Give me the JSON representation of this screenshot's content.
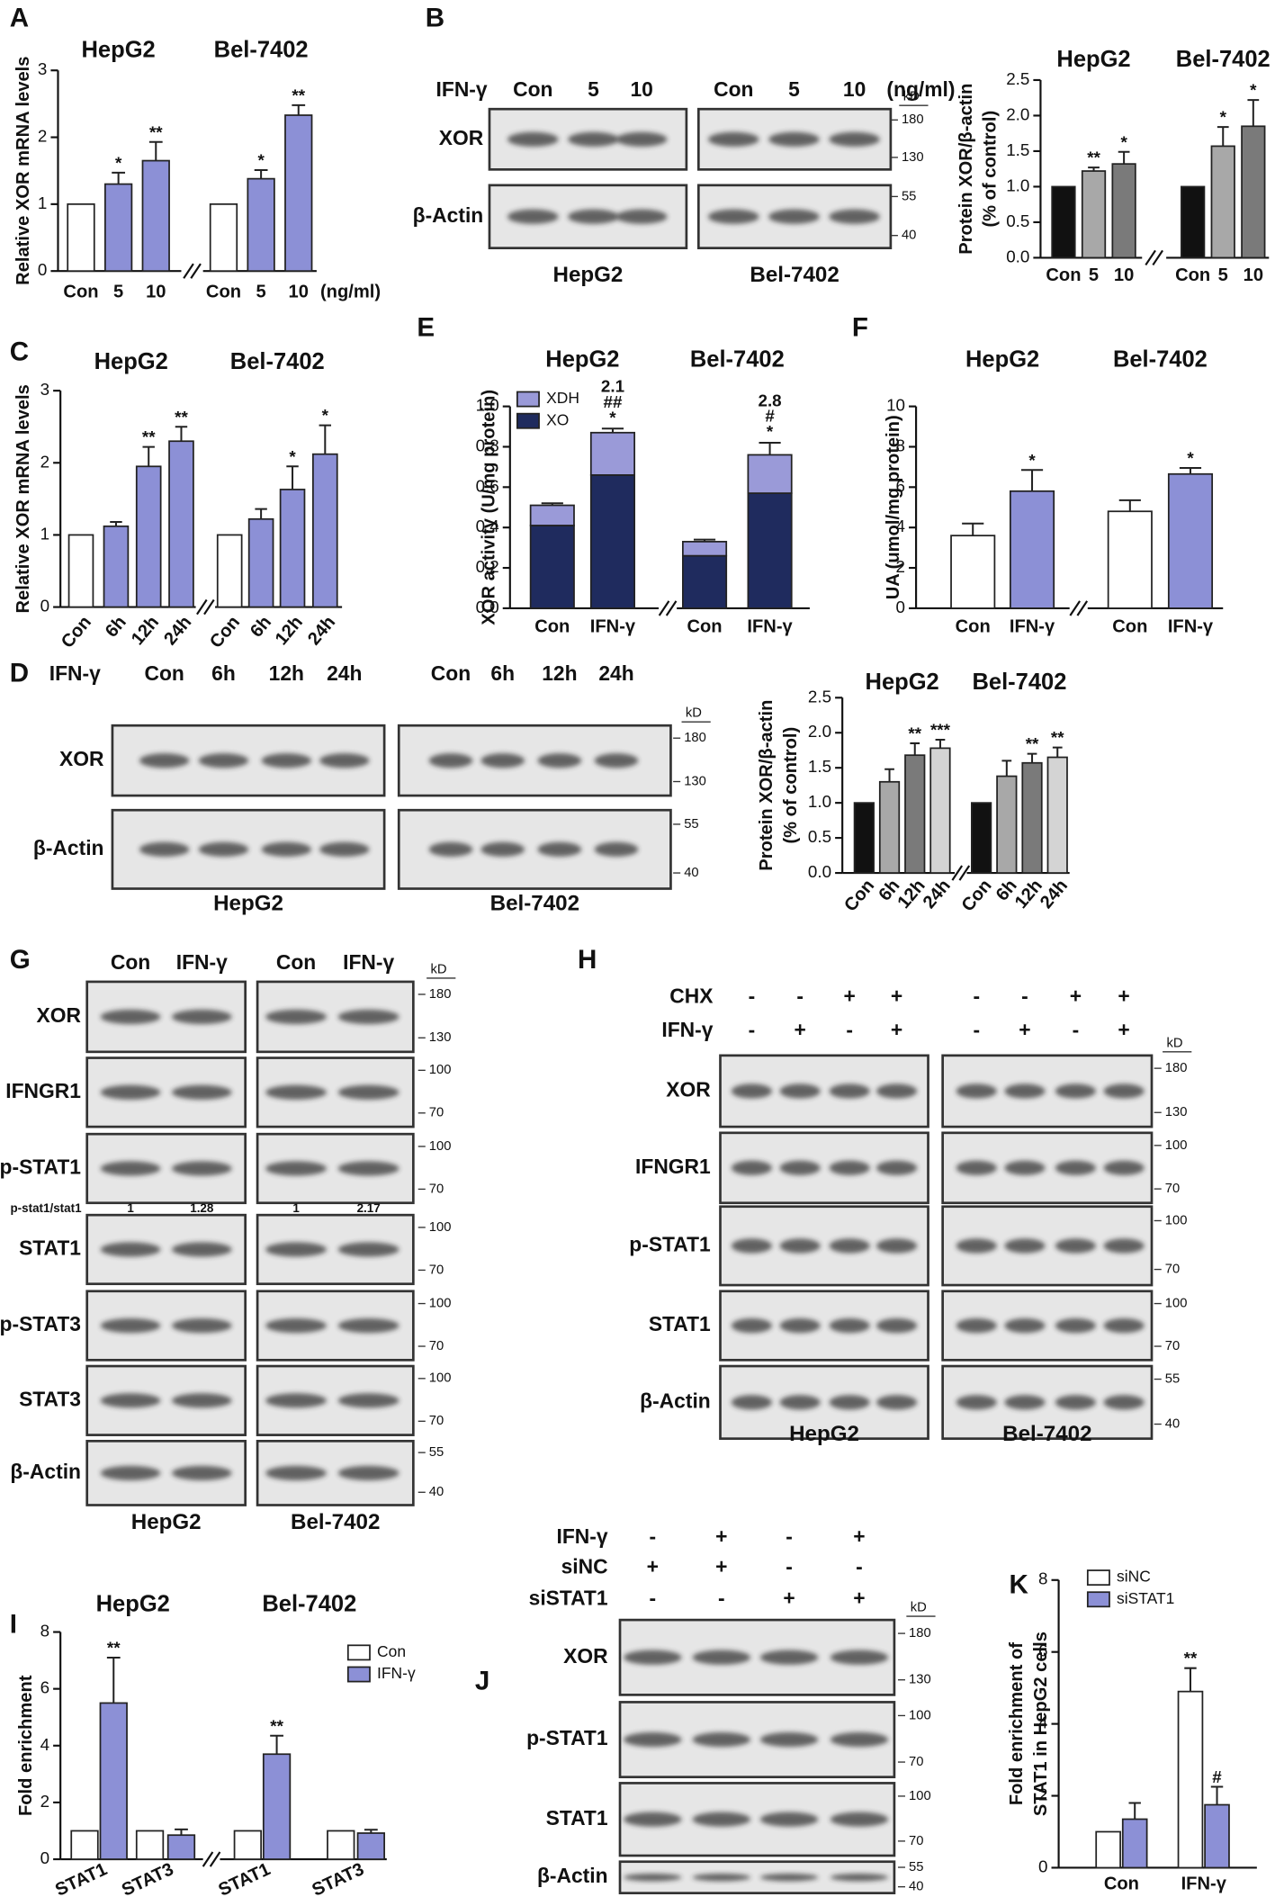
{
  "chart_data": [
    {
      "type": "bar",
      "panel": "A",
      "y_label": "Relative XOR mRNA levels",
      "ylim": [
        0,
        3
      ],
      "yticks": [
        0,
        1,
        2,
        3
      ],
      "colors": [
        "#ffffff",
        "#8c90d6",
        "#8c90d6"
      ],
      "x_unit": "(ng/ml)",
      "groups": [
        {
          "name": "HepG2",
          "categories": [
            "Con",
            "5",
            "10"
          ],
          "values": [
            1,
            1.3,
            1.65
          ],
          "errors": [
            null,
            0.17,
            0.28
          ],
          "annotations": [
            null,
            "*",
            "**"
          ]
        },
        {
          "name": "Bel-7402",
          "categories": [
            "Con",
            "5",
            "10"
          ],
          "values": [
            1,
            1.38,
            2.33
          ],
          "errors": [
            null,
            0.13,
            0.15
          ],
          "annotations": [
            null,
            "*",
            "**"
          ]
        }
      ]
    },
    {
      "type": "bar",
      "panel": "B",
      "y_label": [
        "Protein XOR/β-actin",
        "(% of control)"
      ],
      "ylim": [
        0,
        2.5
      ],
      "yticks": [
        {
          "value": 0,
          "label": "0.0"
        },
        0.5,
        {
          "value": 1,
          "label": "1.0"
        },
        1.5,
        {
          "value": 2,
          "label": "2.0"
        },
        2.5
      ],
      "colors": [
        "#111111",
        "#a8a8a8",
        "#7a7a7a"
      ],
      "groups": [
        {
          "name": "HepG2",
          "categories": [
            "Con",
            "5",
            "10"
          ],
          "values": [
            1,
            1.22,
            1.32
          ],
          "errors": [
            null,
            0.05,
            0.17
          ],
          "annotations": [
            null,
            "**",
            "*"
          ]
        },
        {
          "name": "Bel-7402",
          "categories": [
            "Con",
            "5",
            "10"
          ],
          "values": [
            1,
            1.57,
            1.85
          ],
          "errors": [
            null,
            0.27,
            0.37
          ],
          "annotations": [
            null,
            "*",
            "*"
          ]
        }
      ]
    },
    {
      "type": "bar",
      "panel": "C",
      "y_label": "Relative XOR mRNA levels",
      "ylim": [
        0,
        3
      ],
      "yticks": [
        0,
        1,
        2,
        3
      ],
      "colors": [
        "#ffffff",
        "#8c90d6",
        "#8c90d6",
        "#8c90d6"
      ],
      "groups": [
        {
          "name": "HepG2",
          "categories": [
            "Con",
            "6h",
            "12h",
            "24h"
          ],
          "values": [
            1,
            1.12,
            1.95,
            2.3
          ],
          "errors": [
            null,
            0.06,
            0.27,
            0.2
          ],
          "annotations": [
            null,
            null,
            "**",
            "**"
          ]
        },
        {
          "name": "Bel-7402",
          "categories": [
            "Con",
            "6h",
            "12h",
            "24h"
          ],
          "values": [
            1,
            1.22,
            1.63,
            2.12
          ],
          "errors": [
            null,
            0.14,
            0.32,
            0.4
          ],
          "annotations": [
            null,
            null,
            "*",
            "*"
          ]
        }
      ]
    },
    {
      "type": "bar",
      "y_label": [
        "Protein XOR/β-actin",
        "(% of control)"
      ],
      "ylim": [
        0,
        2.5
      ],
      "yticks": [
        {
          "value": 0,
          "label": "0.0"
        },
        0.5,
        {
          "value": 1,
          "label": "1.0"
        },
        1.5,
        {
          "value": 2,
          "label": "2.0"
        },
        2.5
      ],
      "colors": [
        "#111111",
        "#a8a8a8",
        "#7a7a7a",
        "#d4d4d4"
      ],
      "groups": [
        {
          "name": "HepG2",
          "categories": [
            "Con",
            "6h",
            "12h",
            "24h"
          ],
          "values": [
            1,
            1.3,
            1.68,
            1.78
          ],
          "errors": [
            null,
            0.18,
            0.17,
            0.12
          ],
          "annotations": [
            null,
            null,
            "**",
            "***"
          ]
        },
        {
          "name": "Bel-7402",
          "categories": [
            "Con",
            "6h",
            "12h",
            "24h"
          ],
          "values": [
            1,
            1.38,
            1.57,
            1.65
          ],
          "errors": [
            null,
            0.22,
            0.13,
            0.14
          ],
          "annotations": [
            null,
            null,
            "**",
            "**"
          ]
        }
      ]
    },
    {
      "type": "stacked_bar",
      "panel": "E",
      "y_label": "XOR activity (U/mg protein)",
      "ylim": [
        0,
        1
      ],
      "yticks": [
        {
          "value": 0,
          "label": "0.0"
        },
        0.2,
        0.4,
        0.6,
        0.8,
        {
          "value": 1,
          "label": "1.0"
        }
      ],
      "series": [
        {
          "name": "XO",
          "color": "#1f2b5e",
          "values": [
            [
              0.41,
              0.66
            ],
            [
              0.26,
              0.57
            ]
          ]
        },
        {
          "name": "XDH",
          "color": "#9a9ad8",
          "values": [
            [
              0.1,
              0.21
            ],
            [
              0.07,
              0.19
            ]
          ]
        }
      ],
      "groups": [
        {
          "name": "HepG2",
          "categories": [
            "Con",
            "IFN-γ"
          ],
          "errors": [
            0.01,
            0.02
          ],
          "annotations": [
            null,
            [
              "2.1",
              "##",
              "*"
            ]
          ]
        },
        {
          "name": "Bel-7402",
          "categories": [
            "Con",
            "IFN-γ"
          ],
          "errors": [
            0.01,
            0.06
          ],
          "annotations": [
            null,
            [
              "2.8",
              "#",
              "*"
            ]
          ]
        }
      ]
    },
    {
      "type": "bar",
      "panel": "F",
      "y_label": "UA (umol/mg protein)",
      "ylim": [
        0,
        10
      ],
      "yticks": [
        0,
        2,
        4,
        6,
        8,
        10
      ],
      "colors": [
        "#ffffff",
        "#8c90d6"
      ],
      "groups": [
        {
          "name": "HepG2",
          "categories": [
            "Con",
            "IFN-γ"
          ],
          "values": [
            3.6,
            5.8
          ],
          "errors": [
            0.6,
            1.05
          ],
          "annotations": [
            null,
            "*"
          ]
        },
        {
          "name": "Bel-7402",
          "categories": [
            "Con",
            "IFN-γ"
          ],
          "values": [
            4.8,
            6.65
          ],
          "errors": [
            0.55,
            0.3
          ],
          "annotations": [
            null,
            "*"
          ]
        }
      ]
    },
    {
      "type": "grouped_bar",
      "panel": "I",
      "y_label": "Fold enrichment",
      "ylim": [
        0,
        8
      ],
      "yticks": [
        0,
        2,
        4,
        6,
        8
      ],
      "series": [
        {
          "name": "Con",
          "color": "#ffffff",
          "values": [
            [
              1,
              1
            ],
            [
              1,
              1
            ]
          ]
        },
        {
          "name": "IFN-γ",
          "color": "#8c90d6",
          "values": [
            [
              5.5,
              0.85
            ],
            [
              3.7,
              0.92
            ]
          ],
          "errors": [
            [
              1.6,
              0.2
            ],
            [
              0.65,
              0.12
            ]
          ],
          "annotations": [
            [
              "**",
              null
            ],
            [
              "**",
              null
            ]
          ]
        }
      ],
      "groups": [
        {
          "name": "HepG2",
          "categories": [
            "STAT1",
            "STAT3"
          ]
        },
        {
          "name": "Bel-7402",
          "categories": [
            "STAT1",
            "STAT3"
          ]
        }
      ]
    },
    {
      "type": "grouped_bar",
      "panel": "K",
      "y_label": [
        "Fold enrichment of",
        "STAT1 in HepG2 cells"
      ],
      "ylim": [
        0,
        8
      ],
      "yticks": [
        0,
        2,
        4,
        6,
        8
      ],
      "series": [
        {
          "name": "siNC",
          "color": "#ffffff",
          "values": [
            [
              1,
              4.9
            ]
          ],
          "errors": [
            [
              null,
              0.65
            ]
          ],
          "annotations": [
            [
              null,
              "**"
            ]
          ]
        },
        {
          "name": "siSTAT1",
          "color": "#8c90d6",
          "values": [
            [
              1.35,
              1.75
            ]
          ],
          "errors": [
            [
              0.45,
              0.5
            ]
          ],
          "annotations": [
            [
              null,
              "#"
            ]
          ]
        }
      ],
      "groups": [
        {
          "categories": [
            "Con",
            "IFN-γ"
          ]
        }
      ]
    }
  ],
  "blots": [
    {
      "treatment": "IFN-γ",
      "lanes": [
        [
          "Con",
          "5",
          "10"
        ],
        [
          "Con",
          "5",
          "10"
        ]
      ],
      "unit": "(ng/ml)",
      "rows": [
        "XOR",
        "β-Actin"
      ],
      "kd": "kD",
      "markers": [
        [
          180,
          130
        ],
        [
          55,
          40
        ]
      ],
      "cells": [
        "HepG2",
        "Bel-7402"
      ]
    },
    {
      "panel": "D",
      "treatment": "IFN-γ",
      "lanes": [
        [
          "Con",
          "6h",
          "12h",
          "24h"
        ],
        [
          "Con",
          "6h",
          "12h",
          "24h"
        ]
      ],
      "rows": [
        "XOR",
        "β-Actin"
      ],
      "kd": "kD",
      "markers": [
        [
          180,
          130
        ],
        [
          55,
          40
        ]
      ],
      "cells": [
        "HepG2",
        "Bel-7402"
      ]
    },
    {
      "panel": "G",
      "lanes": [
        [
          "Con",
          "IFN-γ"
        ],
        [
          "Con",
          "IFN-γ"
        ]
      ],
      "rows": [
        "XOR",
        "IFNGR1",
        "p-STAT1",
        "STAT1",
        "p-STAT3",
        "STAT3",
        "β-Actin"
      ],
      "kd": "kD",
      "markers": [
        [
          180,
          130
        ],
        [
          100,
          70
        ],
        [
          100,
          70
        ],
        [
          100,
          70
        ],
        [
          100,
          70
        ],
        [
          100,
          70
        ],
        [
          55,
          40
        ]
      ],
      "cells": [
        "HepG2",
        "Bel-7402"
      ],
      "ratio": {
        "label": "p-stat1/stat1",
        "values": [
          [
            1,
            1.28
          ],
          [
            1,
            2.17
          ]
        ]
      }
    },
    {
      "panel": "H",
      "conditions": [
        {
          "label": "CHX",
          "signs": [
            [
              "-",
              "-",
              "+",
              "+"
            ],
            [
              "-",
              "-",
              "+",
              "+"
            ]
          ]
        },
        {
          "label": "IFN-γ",
          "signs": [
            [
              "-",
              "+",
              "-",
              "+"
            ],
            [
              "-",
              "+",
              "-",
              "+"
            ]
          ]
        }
      ],
      "rows": [
        "XOR",
        "IFNGR1",
        "p-STAT1",
        "STAT1",
        "β-Actin"
      ],
      "kd": "kD",
      "markers": [
        [
          180,
          130
        ],
        [
          100,
          70
        ],
        [
          100,
          70
        ],
        [
          100,
          70
        ],
        [
          55,
          40
        ]
      ],
      "cells": [
        "HepG2",
        "Bel-7402"
      ]
    },
    {
      "panel": "J",
      "conditions": [
        {
          "label": "IFN-γ",
          "signs": [
            [
              "-",
              "+",
              "-",
              "+"
            ]
          ]
        },
        {
          "label": "siNC",
          "signs": [
            [
              "+",
              "+",
              "-",
              "-"
            ]
          ]
        },
        {
          "label": "siSTAT1",
          "signs": [
            [
              "-",
              "-",
              "+",
              "+"
            ]
          ]
        }
      ],
      "rows": [
        "XOR",
        "p-STAT1",
        "STAT1",
        "β-Actin"
      ],
      "kd": "kD",
      "markers": [
        [
          180,
          130
        ],
        [
          100,
          70
        ],
        [
          100,
          70
        ],
        [
          55,
          40
        ]
      ]
    }
  ]
}
